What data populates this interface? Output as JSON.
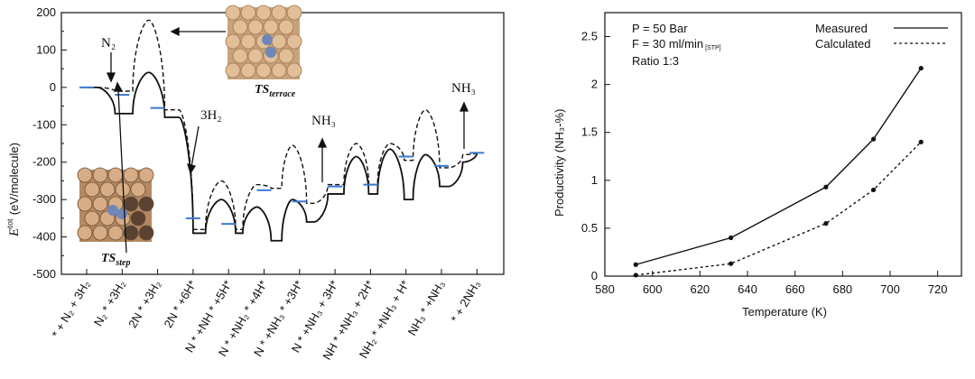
{
  "chart_data": [
    {
      "type": "line",
      "title": "",
      "ylabel": "E tot (eV/molecule)",
      "ylabel_parts": {
        "symbol": "E",
        "superscript": "tot",
        "unit": "(eV/molecule)"
      },
      "ylim": [
        -500,
        200
      ],
      "yticks": [
        "200",
        "150",
        "100",
        "50",
        "0",
        "-50",
        "-100",
        "-150",
        "-200",
        "-250",
        "-300",
        "-350",
        "-400",
        "-450",
        "-500"
      ],
      "categories": [
        {
          "text": "* + N₂ + 3H₂"
        },
        {
          "text": "N₂ * +3H₂"
        },
        {
          "text": "2N * +3H₂"
        },
        {
          "text": "2N * +6H*"
        },
        {
          "text": "N * +NH * +5H*"
        },
        {
          "text": "N * +NH₂ * +4H*"
        },
        {
          "text": "N * +NH₃ * +3H*"
        },
        {
          "text": "N * +NH₃ + 3H*"
        },
        {
          "text": "NH * +NH₃ + 2H*"
        },
        {
          "text": "NH₂ * +NH₃ + H*"
        },
        {
          "text": "NH₃ * +NH₃"
        },
        {
          "text": "* + 2NH₃"
        }
      ],
      "series": [
        {
          "name": "step (solid)",
          "profile": [
            [
              0.0,
              0
            ],
            [
              0.3,
              0
            ],
            [
              0.8,
              -70
            ],
            [
              1.3,
              -70
            ],
            [
              1.75,
              40
            ],
            [
              2.2,
              -80
            ],
            [
              2.6,
              -80
            ],
            [
              3.0,
              -390
            ],
            [
              3.35,
              -390
            ],
            [
              3.8,
              -300
            ],
            [
              4.2,
              -390
            ],
            [
              4.4,
              -390
            ],
            [
              4.8,
              -320
            ],
            [
              5.2,
              -410
            ],
            [
              5.5,
              -410
            ],
            [
              5.8,
              -300
            ],
            [
              6.2,
              -360
            ],
            [
              6.4,
              -360
            ],
            [
              6.8,
              -285
            ],
            [
              7.25,
              -285
            ],
            [
              7.6,
              -185
            ],
            [
              7.95,
              -285
            ],
            [
              8.2,
              -285
            ],
            [
              8.55,
              -165
            ],
            [
              8.95,
              -300
            ],
            [
              9.2,
              -300
            ],
            [
              9.55,
              -180
            ],
            [
              9.95,
              -265
            ],
            [
              10.2,
              -265
            ],
            [
              10.6,
              -200
            ],
            [
              11.0,
              -175
            ]
          ]
        },
        {
          "name": "terrace (dashed)",
          "profile": [
            [
              0.3,
              0
            ],
            [
              0.8,
              -10
            ],
            [
              1.3,
              -10
            ],
            [
              1.75,
              180
            ],
            [
              2.2,
              -60
            ],
            [
              2.6,
              -60
            ],
            [
              3.0,
              -380
            ],
            [
              3.35,
              -380
            ],
            [
              3.8,
              -250
            ],
            [
              4.2,
              -380
            ],
            [
              4.4,
              -380
            ],
            [
              4.8,
              -260
            ],
            [
              5.2,
              -270
            ],
            [
              5.5,
              -270
            ],
            [
              5.8,
              -155
            ],
            [
              6.2,
              -310
            ],
            [
              6.4,
              -310
            ],
            [
              6.8,
              -260
            ],
            [
              7.25,
              -260
            ],
            [
              7.6,
              -150
            ],
            [
              7.95,
              -260
            ],
            [
              8.2,
              -260
            ],
            [
              8.55,
              -150
            ],
            [
              8.95,
              -195
            ],
            [
              9.2,
              -195
            ],
            [
              9.55,
              -60
            ],
            [
              9.95,
              -215
            ],
            [
              10.2,
              -215
            ],
            [
              10.6,
              -180
            ],
            [
              11.0,
              -175
            ]
          ]
        }
      ],
      "calculated_levels": [
        [
          0,
          0
        ],
        [
          1,
          -20
        ],
        [
          2,
          -55
        ],
        [
          3,
          -350
        ],
        [
          4,
          -365
        ],
        [
          5,
          -275
        ],
        [
          6,
          -305
        ],
        [
          7,
          -265
        ],
        [
          8,
          -260
        ],
        [
          9,
          -185
        ],
        [
          10,
          -210
        ],
        [
          11,
          -175
        ]
      ],
      "annotations": [
        {
          "text": "N₂",
          "kind": "arrow-down"
        },
        {
          "text": "3H₂",
          "kind": "arrow-down"
        },
        {
          "text": "NH₃",
          "kind": "arrow-up",
          "id": "nh3-1"
        },
        {
          "text": "NH₃",
          "kind": "arrow-up",
          "id": "nh3-2"
        },
        {
          "text": "TSterrace",
          "main": "TS",
          "sub": "terrace"
        },
        {
          "text": "TSstep",
          "main": "TS",
          "sub": "step"
        }
      ]
    },
    {
      "type": "line",
      "xlabel": "Temperature (K)",
      "ylabel": "Productivity (NH₃-%)",
      "xlim": [
        580,
        730
      ],
      "ylim": [
        0,
        2.75
      ],
      "xticks": [
        "580",
        "600",
        "620",
        "640",
        "660",
        "680",
        "700",
        "720"
      ],
      "yticks": [
        "0",
        "0.5",
        "1",
        "1.5",
        "2",
        "2.5"
      ],
      "conditions": [
        "P = 50 Bar",
        "F = 30 ml/min",
        "[STP]",
        "Ratio 1:3"
      ],
      "series": [
        {
          "name": "Measured",
          "style": "solid",
          "x": [
            593,
            633,
            673,
            693,
            713
          ],
          "y": [
            0.12,
            0.4,
            0.93,
            1.43,
            2.17
          ]
        },
        {
          "name": "Calculated",
          "style": "dashed",
          "x": [
            593,
            633,
            673,
            693,
            713
          ],
          "y": [
            0.01,
            0.13,
            0.55,
            0.9,
            1.4
          ]
        }
      ]
    }
  ]
}
